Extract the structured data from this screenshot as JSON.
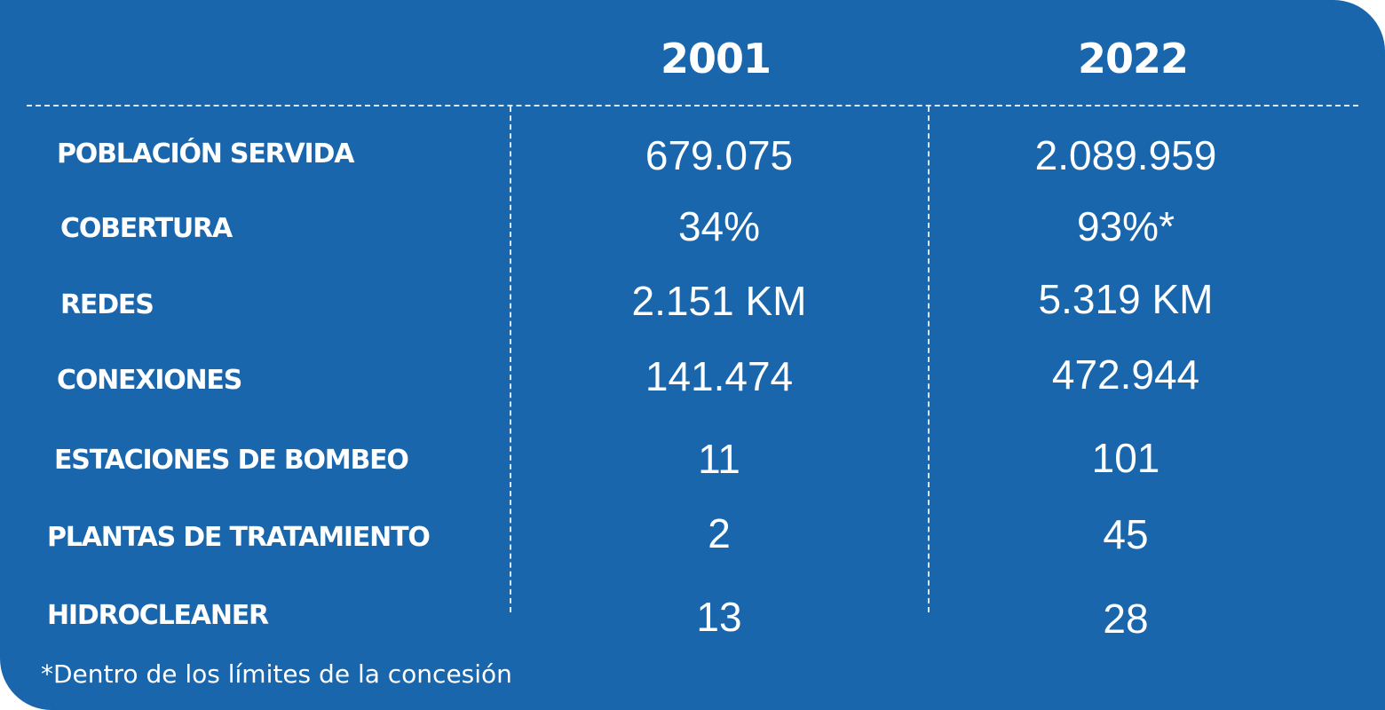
{
  "header": {
    "year_1": "2001",
    "year_2": "2022"
  },
  "rows": [
    {
      "label": "POBLACIÓN SERVIDA",
      "value_2001": "679.075",
      "value_2022": "2.089.959"
    },
    {
      "label": "COBERTURA",
      "value_2001": "34%",
      "value_2022": "93%*"
    },
    {
      "label": "REDES",
      "value_2001": "2.151 KM",
      "value_2022": "5.319 KM"
    },
    {
      "label": "CONEXIONES",
      "value_2001": "141.474",
      "value_2022": "472.944"
    },
    {
      "label": "ESTACIONES DE BOMBEO",
      "value_2001": "11",
      "value_2022": "101"
    },
    {
      "label": "PLANTAS DE TRATAMIENTO",
      "value_2001": "2",
      "value_2022": "45"
    },
    {
      "label": "HIDROCLEANER",
      "value_2001": "13",
      "value_2022": "28"
    }
  ],
  "footnote": "*Dentro de los límites de la concesión",
  "colors": {
    "background": "#1966ad",
    "text": "#ffffff"
  }
}
